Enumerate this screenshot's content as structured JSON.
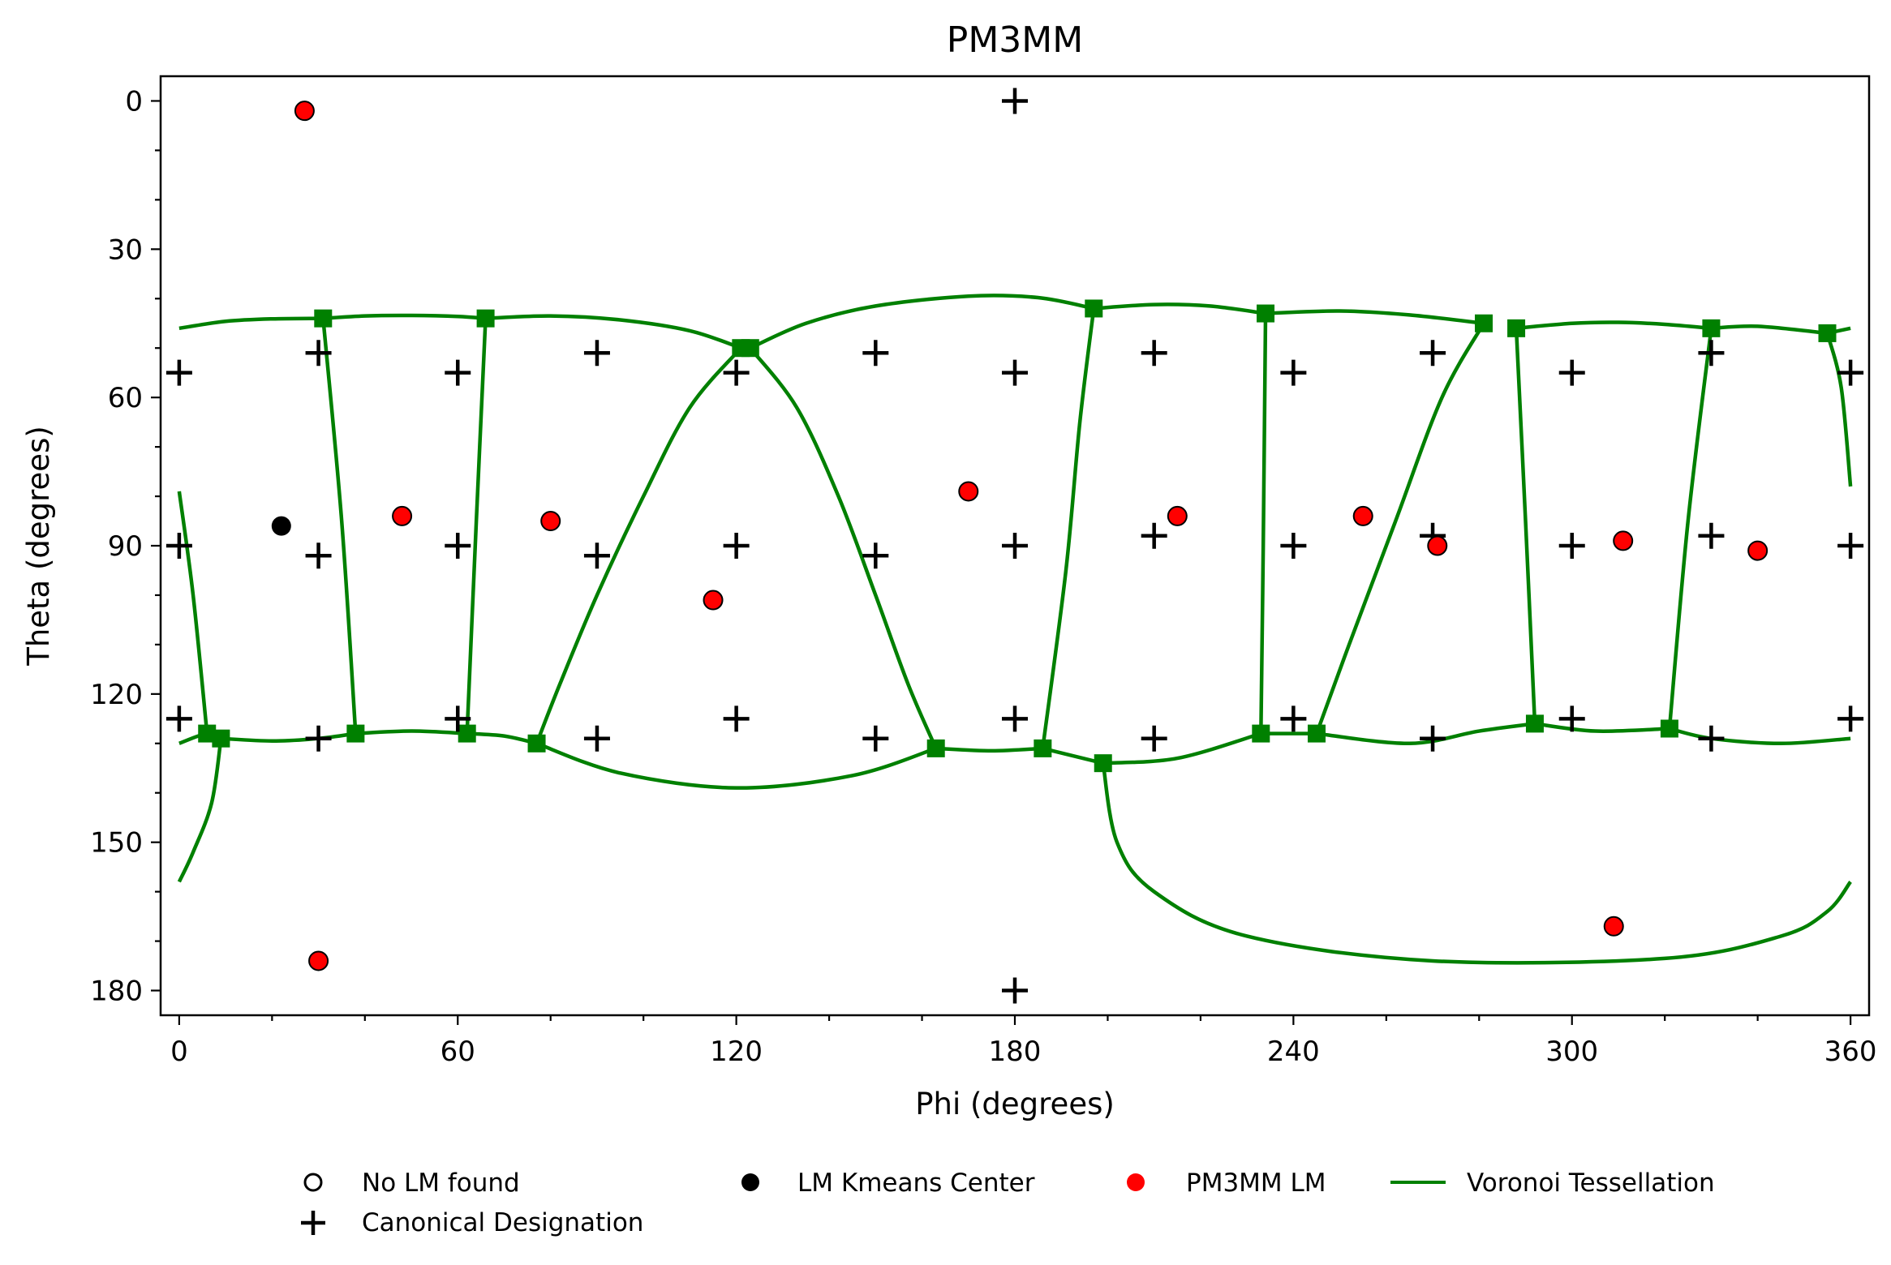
{
  "chart_data": {
    "type": "scatter",
    "title": "PM3MM",
    "xlabel": "Phi (degrees)",
    "ylabel": "Theta (degrees)",
    "xlim": [
      -4,
      364
    ],
    "ylim": [
      185,
      -5
    ],
    "y_axis_inverted": true,
    "xticks": [
      0,
      60,
      120,
      180,
      240,
      300,
      360
    ],
    "yticks": [
      0,
      30,
      60,
      90,
      120,
      150,
      180
    ],
    "grid": false,
    "legend_position": "below plot",
    "legend": [
      {
        "label": "No LM found",
        "marker": "open-circle"
      },
      {
        "label": "LM Kmeans Center",
        "marker": "black-circle"
      },
      {
        "label": "PM3MM LM",
        "marker": "red-circle"
      },
      {
        "label": "Voronoi Tessellation",
        "marker": "green-line"
      },
      {
        "label": "Canonical Designation",
        "marker": "plus"
      }
    ],
    "colors": {
      "lm": "#ff0000",
      "kmeans": "#000000",
      "voronoi": "#008000",
      "canonical": "#000000"
    },
    "canonical_designation": [
      [
        180,
        0
      ],
      [
        0,
        55
      ],
      [
        30,
        51
      ],
      [
        60,
        55
      ],
      [
        90,
        51
      ],
      [
        120,
        55
      ],
      [
        150,
        51
      ],
      [
        180,
        55
      ],
      [
        210,
        51
      ],
      [
        240,
        55
      ],
      [
        270,
        51
      ],
      [
        300,
        55
      ],
      [
        330,
        51
      ],
      [
        360,
        55
      ],
      [
        0,
        90
      ],
      [
        30,
        92
      ],
      [
        60,
        90
      ],
      [
        90,
        92
      ],
      [
        120,
        90
      ],
      [
        150,
        92
      ],
      [
        180,
        90
      ],
      [
        210,
        88
      ],
      [
        240,
        90
      ],
      [
        270,
        88
      ],
      [
        300,
        90
      ],
      [
        330,
        88
      ],
      [
        360,
        90
      ],
      [
        0,
        125
      ],
      [
        30,
        129
      ],
      [
        60,
        125
      ],
      [
        90,
        129
      ],
      [
        120,
        125
      ],
      [
        150,
        129
      ],
      [
        180,
        125
      ],
      [
        210,
        129
      ],
      [
        240,
        125
      ],
      [
        270,
        129
      ],
      [
        300,
        125
      ],
      [
        330,
        129
      ],
      [
        360,
        125
      ],
      [
        180,
        180
      ]
    ],
    "lm_kmeans_center": [
      [
        22,
        86
      ]
    ],
    "pm3mm_lm": [
      [
        27,
        2
      ],
      [
        48,
        84
      ],
      [
        80,
        85
      ],
      [
        115,
        101
      ],
      [
        170,
        79
      ],
      [
        215,
        84
      ],
      [
        255,
        84
      ],
      [
        271,
        90
      ],
      [
        311,
        89
      ],
      [
        340,
        91
      ],
      [
        30,
        174
      ],
      [
        309,
        167
      ]
    ],
    "voronoi_vertices": [
      [
        31,
        44
      ],
      [
        66,
        44
      ],
      [
        121,
        50
      ],
      [
        123,
        50
      ],
      [
        197,
        42
      ],
      [
        234,
        43
      ],
      [
        281,
        45
      ],
      [
        288,
        46
      ],
      [
        330,
        46
      ],
      [
        355,
        47
      ],
      [
        6,
        128
      ],
      [
        9,
        129
      ],
      [
        38,
        128
      ],
      [
        62,
        128
      ],
      [
        77,
        130
      ],
      [
        163,
        131
      ],
      [
        186,
        131
      ],
      [
        199,
        134
      ],
      [
        233,
        128
      ],
      [
        245,
        128
      ],
      [
        292,
        126
      ],
      [
        321,
        127
      ]
    ],
    "voronoi_edges": [
      [
        [
          0,
          46
        ],
        [
          10,
          44.6
        ],
        [
          20,
          44.1
        ],
        [
          31,
          44
        ]
      ],
      [
        [
          31,
          44
        ],
        [
          40,
          43.5
        ],
        [
          50,
          43.4
        ],
        [
          60,
          43.6
        ],
        [
          66,
          44
        ]
      ],
      [
        [
          66,
          44
        ],
        [
          80,
          43.5
        ],
        [
          95,
          44.3
        ],
        [
          110,
          46.5
        ],
        [
          121,
          50
        ]
      ],
      [
        [
          123,
          50
        ],
        [
          135,
          45
        ],
        [
          150,
          41.5
        ],
        [
          170,
          39.5
        ],
        [
          185,
          39.8
        ],
        [
          197,
          42
        ]
      ],
      [
        [
          197,
          42
        ],
        [
          210,
          41.2
        ],
        [
          222,
          41.5
        ],
        [
          234,
          43
        ]
      ],
      [
        [
          234,
          43
        ],
        [
          250,
          42.5
        ],
        [
          265,
          43.3
        ],
        [
          281,
          45
        ]
      ],
      [
        [
          288,
          46
        ],
        [
          300,
          45
        ],
        [
          310,
          44.8
        ],
        [
          320,
          45.2
        ],
        [
          330,
          46
        ]
      ],
      [
        [
          330,
          46
        ],
        [
          340,
          45.6
        ],
        [
          355,
          47
        ]
      ],
      [
        [
          355,
          47
        ],
        [
          360,
          46
        ]
      ],
      [
        [
          31,
          44
        ],
        [
          35,
          85
        ],
        [
          38,
          128
        ]
      ],
      [
        [
          66,
          44
        ],
        [
          64,
          85
        ],
        [
          62,
          128
        ]
      ],
      [
        [
          121,
          50
        ],
        [
          110,
          62
        ],
        [
          100,
          80
        ],
        [
          90,
          100
        ],
        [
          82,
          118
        ],
        [
          77,
          130
        ]
      ],
      [
        [
          123,
          50
        ],
        [
          133,
          62
        ],
        [
          142,
          80
        ],
        [
          150,
          100
        ],
        [
          157,
          118
        ],
        [
          163,
          131
        ]
      ],
      [
        [
          197,
          42
        ],
        [
          194,
          65
        ],
        [
          191,
          95
        ],
        [
          186,
          131
        ]
      ],
      [
        [
          234,
          43
        ],
        [
          233.5,
          90
        ],
        [
          233,
          128
        ]
      ],
      [
        [
          281,
          45
        ],
        [
          272,
          60
        ],
        [
          262,
          85
        ],
        [
          252,
          110
        ],
        [
          245,
          128
        ]
      ],
      [
        [
          288,
          46
        ],
        [
          290,
          85
        ],
        [
          292,
          126
        ]
      ],
      [
        [
          330,
          46
        ],
        [
          325,
          85
        ],
        [
          321,
          127
        ]
      ],
      [
        [
          355,
          47
        ],
        [
          358,
          58
        ],
        [
          360,
          78
        ]
      ],
      [
        [
          0,
          79
        ],
        [
          3,
          100
        ],
        [
          6,
          128
        ]
      ],
      [
        [
          0,
          130
        ],
        [
          6,
          128
        ],
        [
          9,
          129
        ]
      ],
      [
        [
          9,
          129
        ],
        [
          20,
          129.5
        ],
        [
          30,
          129
        ],
        [
          38,
          128
        ]
      ],
      [
        [
          38,
          128
        ],
        [
          50,
          127.5
        ],
        [
          62,
          128
        ]
      ],
      [
        [
          62,
          128
        ],
        [
          70,
          128.5
        ],
        [
          77,
          130
        ]
      ],
      [
        [
          77,
          130
        ],
        [
          95,
          136
        ],
        [
          120,
          139
        ],
        [
          145,
          136.5
        ],
        [
          163,
          131
        ]
      ],
      [
        [
          163,
          131
        ],
        [
          175,
          131.5
        ],
        [
          186,
          131
        ]
      ],
      [
        [
          186,
          131
        ],
        [
          199,
          134
        ]
      ],
      [
        [
          199,
          134
        ],
        [
          215,
          133
        ],
        [
          233,
          128
        ]
      ],
      [
        [
          233,
          128
        ],
        [
          245,
          128
        ]
      ],
      [
        [
          245,
          128
        ],
        [
          265,
          130
        ],
        [
          280,
          127.5
        ],
        [
          292,
          126
        ]
      ],
      [
        [
          292,
          126
        ],
        [
          305,
          127.5
        ],
        [
          321,
          127
        ]
      ],
      [
        [
          321,
          127
        ],
        [
          330,
          129
        ],
        [
          345,
          130
        ],
        [
          360,
          129
        ]
      ],
      [
        [
          9,
          129
        ],
        [
          7,
          142
        ],
        [
          3,
          152
        ],
        [
          0,
          158
        ]
      ],
      [
        [
          199,
          134
        ],
        [
          202,
          150
        ],
        [
          210,
          160
        ],
        [
          230,
          169
        ],
        [
          270,
          174
        ],
        [
          320,
          173.5
        ],
        [
          345,
          169
        ],
        [
          355,
          164
        ],
        [
          360,
          158
        ]
      ]
    ]
  }
}
